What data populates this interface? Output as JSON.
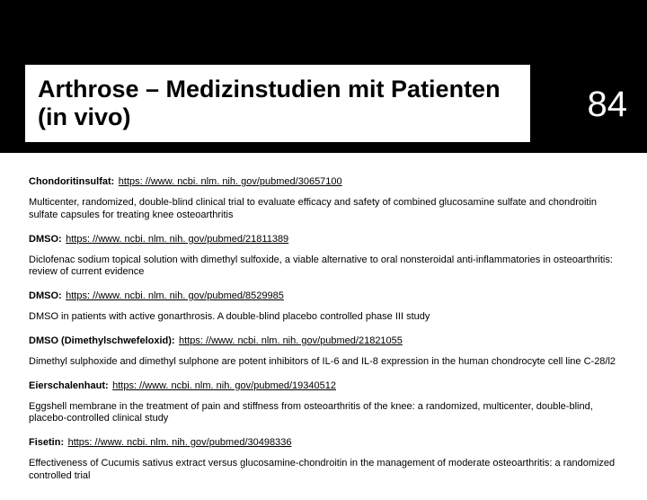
{
  "header": {
    "title": "Arthrose – Medizinstudien mit Patienten (in vivo)",
    "page_number": "84",
    "bg_color": "#000000",
    "title_bg": "#ffffff",
    "title_color": "#000000",
    "page_num_color": "#ffffff"
  },
  "entries": [
    {
      "label": "Chondoritinsulfat:",
      "url": "https: //www. ncbi. nlm. nih. gov/pubmed/30657100",
      "desc": "Multicenter, randomized, double-blind clinical trial to evaluate efficacy and safety of combined glucosamine sulfate and chondroitin sulfate capsules for treating knee osteoarthritis"
    },
    {
      "label": "DMSO:",
      "url": "https: //www. ncbi. nlm. nih. gov/pubmed/21811389",
      "desc": "Diclofenac sodium topical solution with dimethyl sulfoxide, a viable alternative to oral nonsteroidal anti-inflammatories in osteoarthritis: review of current evidence"
    },
    {
      "label": "DMSO:",
      "url": "https: //www. ncbi. nlm. nih. gov/pubmed/8529985",
      "desc": "DMSO in patients with active gonarthrosis. A double-blind placebo controlled phase III study"
    },
    {
      "label": "DMSO (Dimethylschwefeloxid):",
      "url": "https: //www. ncbi. nlm. nih. gov/pubmed/21821055",
      "desc": "Dimethyl sulphoxide and dimethyl sulphone are potent inhibitors of IL-6 and IL-8 expression in the human chondrocyte cell line C-28/l2"
    },
    {
      "label": "Eierschalenhaut:",
      "url": "https: //www. ncbi. nlm. nih. gov/pubmed/19340512",
      "desc": "Eggshell membrane in the treatment of pain and stiffness from osteoarthritis of the knee: a randomized, multicenter, double-blind, placebo-controlled clinical study"
    },
    {
      "label": "Fisetin:",
      "url": "https: //www. ncbi. nlm. nih. gov/pubmed/30498336",
      "desc": "Effectiveness of Cucumis sativus extract versus glucosamine-chondroitin in the management of moderate osteoarthritis: a randomized controlled trial"
    }
  ],
  "styles": {
    "body_font": "Arial",
    "title_font": "Comic Sans MS",
    "label_fontsize": 11,
    "link_fontsize": 11,
    "desc_fontsize": 11,
    "title_fontsize": 27,
    "pagenum_fontsize": 40,
    "link_color": "#000000",
    "text_color": "#000000",
    "background": "#ffffff"
  }
}
